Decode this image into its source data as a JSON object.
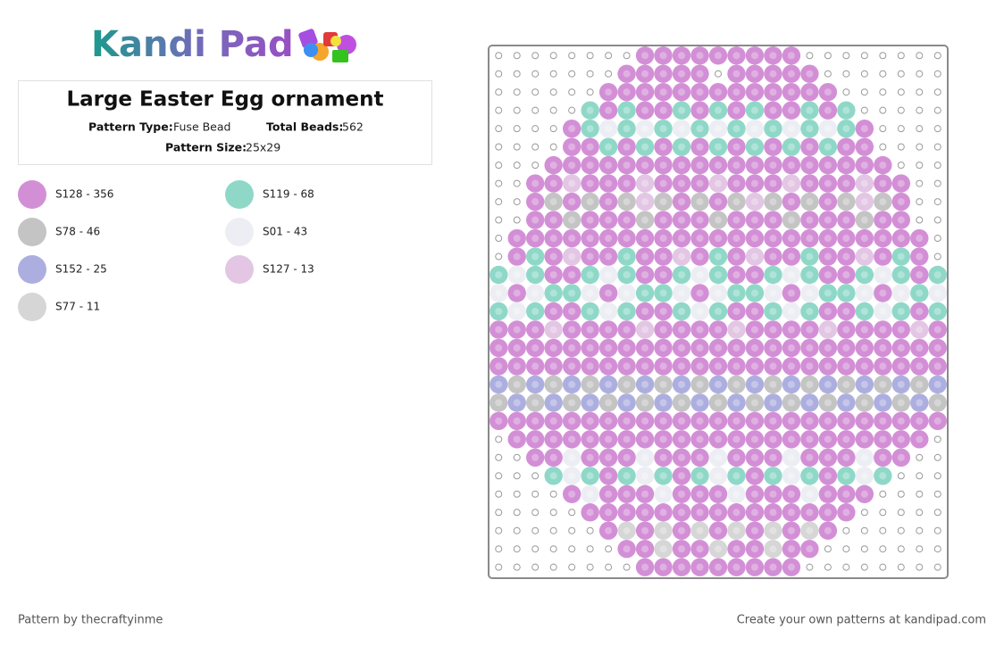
{
  "header": {
    "logo": "Kandi Pad"
  },
  "info": {
    "title": "Large Easter Egg ornament",
    "pattern_type_label": "Pattern Type:",
    "pattern_type": "Fuse Bead",
    "total_beads_label": "Total Beads:",
    "total_beads": "562",
    "pattern_size_label": "Pattern Size:",
    "pattern_size": "25x29"
  },
  "legend": [
    {
      "label": "S128 - 356",
      "color": "#d38fd6"
    },
    {
      "label": "S119 - 68",
      "color": "#8fd8c8"
    },
    {
      "label": "S78 - 46",
      "color": "#c3c4c3"
    },
    {
      "label": "S01 - 43",
      "color": "#eceef4"
    },
    {
      "label": "S152 - 25",
      "color": "#adaee0"
    },
    {
      "label": "S127 - 13",
      "color": "#e2c6e4"
    },
    {
      "label": "S77 - 11",
      "color": "#d5d6d5"
    }
  ],
  "footer": {
    "credit": "Pattern by thecraftyinme",
    "promo": "Create your own patterns at kandipad.com"
  }
}
